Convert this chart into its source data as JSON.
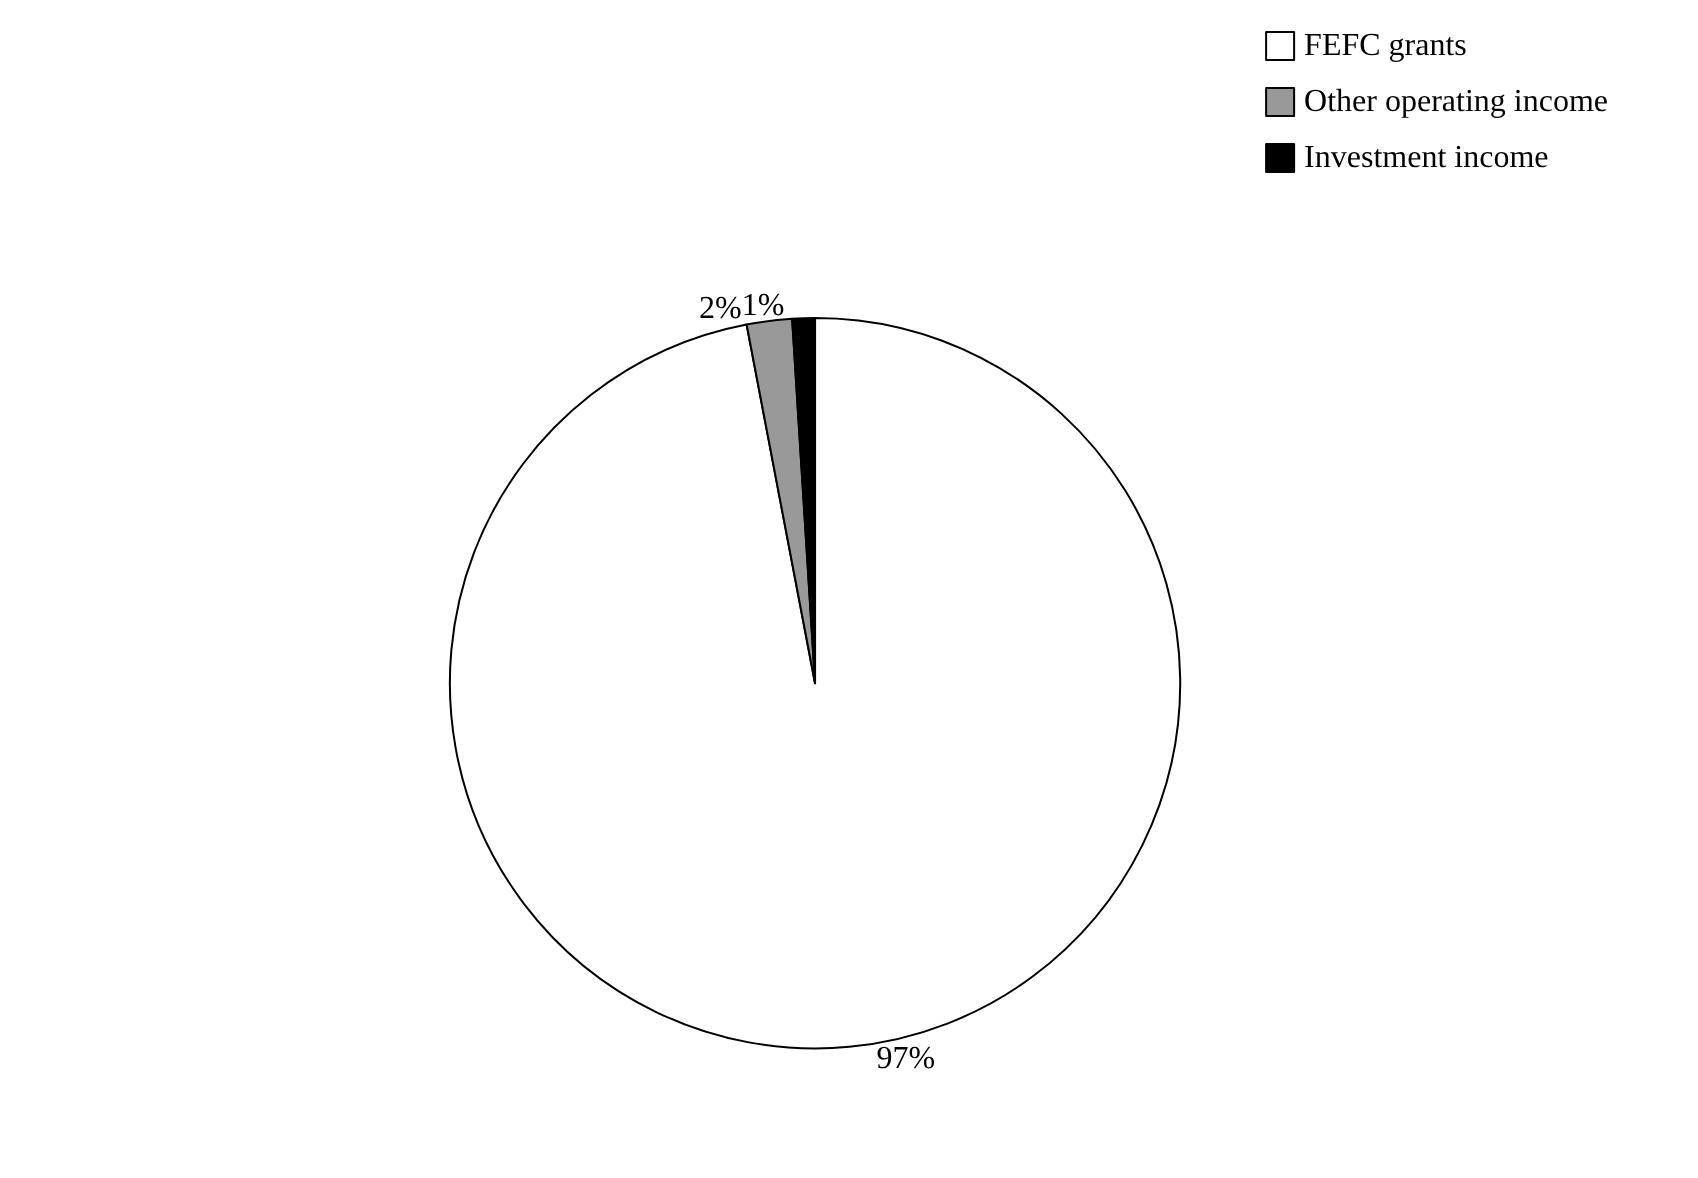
{
  "chart_data": {
    "type": "pie",
    "categories": [
      "FEFC grants",
      "Other operating income",
      "Investment income"
    ],
    "values": [
      97,
      2,
      1
    ],
    "colors": [
      "#ffffff",
      "#999999",
      "#000000"
    ],
    "value_labels": [
      "97%",
      "2%",
      "1%"
    ],
    "legend": "top right"
  }
}
